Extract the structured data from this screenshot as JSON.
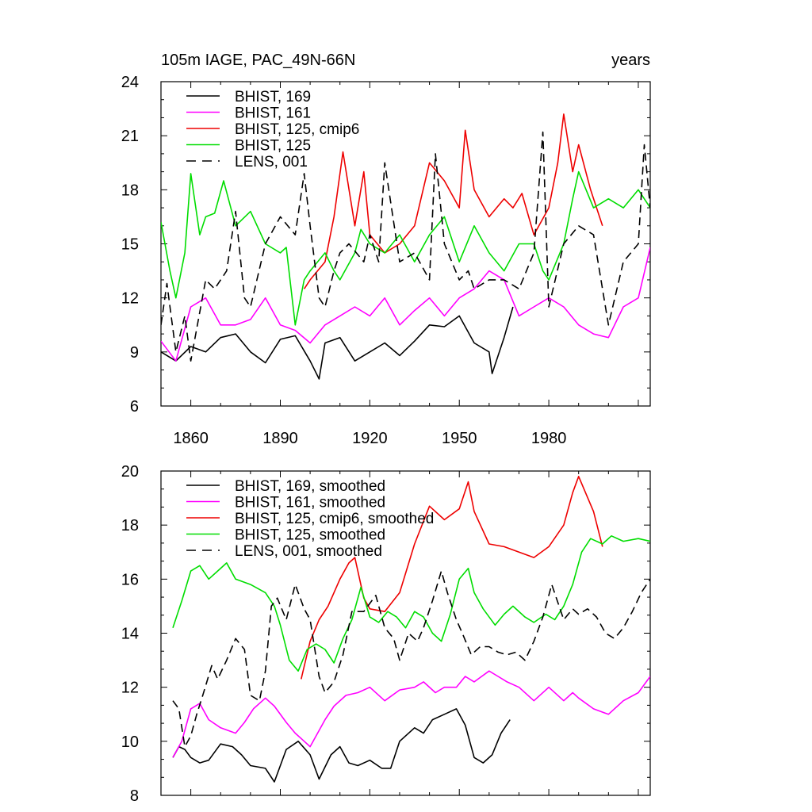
{
  "colors": {
    "black": "#000000",
    "magenta": "#ff00ff",
    "red": "#ee0000",
    "green": "#00dd00",
    "dashed": "#000000"
  },
  "chart_data": [
    {
      "type": "line",
      "title": "105m IAGE, PAC_49N-66N",
      "units": "years",
      "xlim": [
        1850,
        2014
      ],
      "ylim": [
        6,
        24
      ],
      "yticks": [
        6,
        9,
        12,
        15,
        18,
        21,
        24
      ],
      "xticks": [
        1860,
        1890,
        1920,
        1950,
        1980
      ],
      "series": [
        {
          "name": "BHIST, 169",
          "style": "solid",
          "color": "#000000",
          "x": [
            1850,
            1855,
            1860,
            1865,
            1870,
            1875,
            1880,
            1885,
            1890,
            1895,
            1900,
            1903,
            1905,
            1910,
            1915,
            1920,
            1925,
            1930,
            1935,
            1940,
            1945,
            1950,
            1955,
            1960,
            1961,
            1965,
            1968
          ],
          "y": [
            9.0,
            8.5,
            9.3,
            9.0,
            9.8,
            10.0,
            9.0,
            8.4,
            9.7,
            9.9,
            8.5,
            7.5,
            9.5,
            9.8,
            8.5,
            9.0,
            9.5,
            8.8,
            9.6,
            10.5,
            10.4,
            11.0,
            9.5,
            9.0,
            7.8,
            9.8,
            11.5
          ]
        },
        {
          "name": "BHIST, 161",
          "style": "solid",
          "color": "#ff00ff",
          "x": [
            1850,
            1855,
            1860,
            1865,
            1870,
            1875,
            1880,
            1885,
            1890,
            1895,
            1900,
            1905,
            1910,
            1915,
            1920,
            1925,
            1930,
            1935,
            1940,
            1945,
            1950,
            1955,
            1960,
            1965,
            1970,
            1975,
            1980,
            1985,
            1990,
            1995,
            2000,
            2005,
            2010,
            2014
          ],
          "y": [
            9.6,
            8.5,
            11.5,
            12.0,
            10.5,
            10.5,
            10.8,
            12.0,
            10.5,
            10.2,
            9.5,
            10.5,
            11.0,
            11.5,
            11.0,
            12.0,
            10.5,
            11.3,
            12.0,
            11.0,
            12.0,
            12.5,
            13.5,
            13.0,
            11.0,
            11.5,
            12.0,
            11.5,
            10.5,
            10.0,
            9.8,
            11.5,
            12.0,
            14.8
          ]
        },
        {
          "name": "BHIST, 125, cmip6",
          "style": "solid",
          "color": "#ee0000",
          "x": [
            1898,
            1900,
            1905,
            1908,
            1911,
            1915,
            1918,
            1920,
            1925,
            1930,
            1935,
            1940,
            1945,
            1950,
            1952,
            1955,
            1960,
            1965,
            1968,
            1971,
            1975,
            1980,
            1983,
            1985,
            1988,
            1990,
            1994,
            1998
          ],
          "y": [
            12.5,
            13.0,
            14.0,
            16.5,
            20.1,
            16.0,
            19.0,
            15.5,
            14.5,
            15.0,
            16.0,
            19.5,
            18.5,
            17.0,
            21.3,
            18.0,
            16.5,
            17.5,
            17.0,
            17.8,
            15.5,
            17.0,
            19.5,
            22.2,
            19.0,
            20.5,
            18.0,
            16.0
          ]
        },
        {
          "name": "BHIST, 125",
          "style": "solid",
          "color": "#00dd00",
          "x": [
            1850,
            1853,
            1855,
            1858,
            1860,
            1863,
            1865,
            1868,
            1871,
            1875,
            1880,
            1885,
            1890,
            1892,
            1895,
            1898,
            1900,
            1905,
            1908,
            1910,
            1915,
            1917,
            1920,
            1925,
            1930,
            1935,
            1940,
            1945,
            1950,
            1955,
            1960,
            1965,
            1970,
            1975,
            1978,
            1980,
            1985,
            1988,
            1990,
            1995,
            2000,
            2005,
            2010,
            2014
          ],
          "y": [
            16.2,
            13.5,
            12.0,
            14.5,
            18.9,
            15.5,
            16.5,
            16.7,
            18.5,
            16.0,
            16.8,
            15.0,
            14.5,
            14.8,
            10.5,
            13.0,
            13.5,
            14.5,
            13.5,
            13.0,
            14.5,
            15.8,
            15.0,
            14.5,
            15.5,
            14.0,
            15.5,
            16.5,
            14.0,
            16.0,
            14.5,
            13.5,
            15.0,
            15.0,
            13.5,
            13.0,
            15.0,
            17.5,
            19.0,
            17.0,
            17.5,
            17.0,
            18.0,
            17.0
          ]
        },
        {
          "name": "LENS, 001",
          "style": "dashed",
          "color": "#000000",
          "x": [
            1850,
            1852,
            1855,
            1858,
            1860,
            1865,
            1868,
            1872,
            1875,
            1878,
            1880,
            1885,
            1890,
            1895,
            1898,
            1900,
            1903,
            1905,
            1908,
            1910,
            1913,
            1918,
            1920,
            1923,
            1925,
            1930,
            1935,
            1940,
            1942,
            1945,
            1950,
            1953,
            1955,
            1960,
            1965,
            1970,
            1975,
            1978,
            1980,
            1985,
            1990,
            1995,
            2000,
            2005,
            2010,
            2012,
            2014
          ],
          "y": [
            10.5,
            12.8,
            9.0,
            11.0,
            8.5,
            13.0,
            12.5,
            13.5,
            16.8,
            12.0,
            11.5,
            15.0,
            16.5,
            15.5,
            18.9,
            16.0,
            12.0,
            11.5,
            13.5,
            14.5,
            15.0,
            14.0,
            15.5,
            14.0,
            19.5,
            14.0,
            14.5,
            13.0,
            20.0,
            15.0,
            13.0,
            13.5,
            12.5,
            13.0,
            13.0,
            12.5,
            14.5,
            21.2,
            11.5,
            15.0,
            16.0,
            15.5,
            10.5,
            14.0,
            15.0,
            20.5,
            17.0
          ]
        }
      ]
    },
    {
      "type": "line",
      "xlim": [
        1850,
        2014
      ],
      "ylim": [
        8,
        20
      ],
      "yticks": [
        8,
        10,
        12,
        14,
        16,
        18,
        20
      ],
      "series": [
        {
          "name": "BHIST, 169, smoothed",
          "style": "solid",
          "color": "#000000",
          "x": [
            1854,
            1856,
            1858,
            1860,
            1863,
            1866,
            1870,
            1874,
            1877,
            1880,
            1885,
            1888,
            1892,
            1896,
            1900,
            1903,
            1907,
            1910,
            1913,
            1916,
            1920,
            1924,
            1927,
            1930,
            1935,
            1938,
            1941,
            1945,
            1949,
            1952,
            1955,
            1958,
            1961,
            1964,
            1967
          ],
          "y": [
            9.4,
            9.8,
            9.7,
            9.4,
            9.2,
            9.3,
            9.9,
            9.8,
            9.5,
            9.1,
            9.0,
            8.5,
            9.7,
            10.0,
            9.5,
            8.6,
            9.5,
            9.8,
            9.2,
            9.1,
            9.3,
            9.0,
            9.0,
            10.0,
            10.5,
            10.3,
            10.8,
            11.0,
            11.2,
            10.6,
            9.4,
            9.2,
            9.5,
            10.3,
            10.8
          ]
        },
        {
          "name": "BHIST, 161, smoothed",
          "style": "solid",
          "color": "#ff00ff",
          "x": [
            1854,
            1857,
            1860,
            1863,
            1866,
            1870,
            1875,
            1878,
            1881,
            1885,
            1888,
            1892,
            1895,
            1898,
            1900,
            1905,
            1908,
            1912,
            1916,
            1920,
            1925,
            1930,
            1935,
            1938,
            1942,
            1945,
            1949,
            1952,
            1955,
            1960,
            1963,
            1966,
            1970,
            1975,
            1980,
            1985,
            1988,
            1990,
            1995,
            2000,
            2005,
            2010,
            2014
          ],
          "y": [
            9.4,
            10.0,
            11.2,
            11.4,
            10.8,
            10.5,
            10.3,
            10.7,
            11.2,
            11.6,
            11.3,
            10.7,
            10.3,
            10.0,
            9.8,
            10.8,
            11.3,
            11.7,
            11.8,
            12.0,
            11.5,
            11.9,
            12.0,
            12.2,
            11.8,
            12.0,
            12.0,
            12.4,
            12.2,
            12.6,
            12.4,
            12.2,
            12.0,
            11.5,
            12.0,
            11.5,
            11.8,
            11.6,
            11.2,
            11.0,
            11.5,
            11.8,
            12.4
          ]
        },
        {
          "name": "BHIST, 125, cmip6, smoothed",
          "style": "solid",
          "color": "#ee0000",
          "x": [
            1897,
            1900,
            1903,
            1906,
            1910,
            1913,
            1915,
            1918,
            1920,
            1925,
            1930,
            1935,
            1940,
            1945,
            1950,
            1953,
            1955,
            1960,
            1965,
            1970,
            1975,
            1980,
            1985,
            1988,
            1990,
            1995,
            1998
          ],
          "y": [
            12.3,
            13.7,
            14.5,
            15.0,
            16.0,
            16.6,
            16.8,
            15.3,
            14.9,
            14.8,
            15.5,
            17.3,
            18.7,
            18.2,
            18.6,
            19.6,
            18.5,
            17.3,
            17.2,
            17.0,
            16.8,
            17.2,
            18.0,
            19.2,
            19.8,
            18.5,
            17.2
          ]
        },
        {
          "name": "BHIST, 125, smoothed",
          "style": "solid",
          "color": "#00dd00",
          "x": [
            1854,
            1857,
            1860,
            1863,
            1866,
            1869,
            1872,
            1875,
            1880,
            1885,
            1888,
            1890,
            1893,
            1896,
            1899,
            1902,
            1905,
            1908,
            1911,
            1914,
            1917,
            1920,
            1923,
            1926,
            1929,
            1932,
            1935,
            1938,
            1941,
            1944,
            1947,
            1950,
            1953,
            1955,
            1958,
            1962,
            1965,
            1968,
            1972,
            1975,
            1979,
            1982,
            1985,
            1988,
            1991,
            1994,
            1998,
            2001,
            2005,
            2010,
            2014
          ],
          "y": [
            14.2,
            15.2,
            16.3,
            16.5,
            16.0,
            16.3,
            16.6,
            16.0,
            15.8,
            15.5,
            15.0,
            14.3,
            13.0,
            12.6,
            13.4,
            13.6,
            13.4,
            12.9,
            13.8,
            14.5,
            15.7,
            14.6,
            14.4,
            14.8,
            14.6,
            14.2,
            14.8,
            14.6,
            14.0,
            13.7,
            14.7,
            16.0,
            16.4,
            15.5,
            14.9,
            14.3,
            14.7,
            15.0,
            14.6,
            14.4,
            14.7,
            14.5,
            15.0,
            15.8,
            17.0,
            17.5,
            17.3,
            17.6,
            17.4,
            17.5,
            17.4
          ]
        },
        {
          "name": "LENS, 001, smoothed",
          "style": "dashed",
          "color": "#000000",
          "x": [
            1854,
            1856,
            1858,
            1860,
            1862,
            1864,
            1867,
            1869,
            1872,
            1875,
            1878,
            1880,
            1883,
            1885,
            1887,
            1889,
            1892,
            1895,
            1898,
            1900,
            1903,
            1905,
            1908,
            1911,
            1914,
            1918,
            1922,
            1925,
            1928,
            1930,
            1933,
            1936,
            1938,
            1941,
            1944,
            1946,
            1949,
            1951,
            1954,
            1957,
            1960,
            1963,
            1966,
            1969,
            1972,
            1975,
            1978,
            1981,
            1985,
            1988,
            1990,
            1993,
            1996,
            1999,
            2002,
            2005,
            2008,
            2011,
            2014
          ],
          "y": [
            11.5,
            11.2,
            9.8,
            10.2,
            11.0,
            11.7,
            12.8,
            12.3,
            13.0,
            13.8,
            13.4,
            11.7,
            11.5,
            12.6,
            15.0,
            15.3,
            14.5,
            15.8,
            14.9,
            14.5,
            12.4,
            11.8,
            12.2,
            13.2,
            14.8,
            14.8,
            15.4,
            14.2,
            13.8,
            13.0,
            14.0,
            13.7,
            14.2,
            15.2,
            16.3,
            15.5,
            14.5,
            14.0,
            13.2,
            13.5,
            13.5,
            13.3,
            13.2,
            13.3,
            13.0,
            13.7,
            14.6,
            15.8,
            14.5,
            14.9,
            14.7,
            14.9,
            14.6,
            14.0,
            13.8,
            14.2,
            14.8,
            15.5,
            16.0
          ]
        }
      ]
    }
  ]
}
